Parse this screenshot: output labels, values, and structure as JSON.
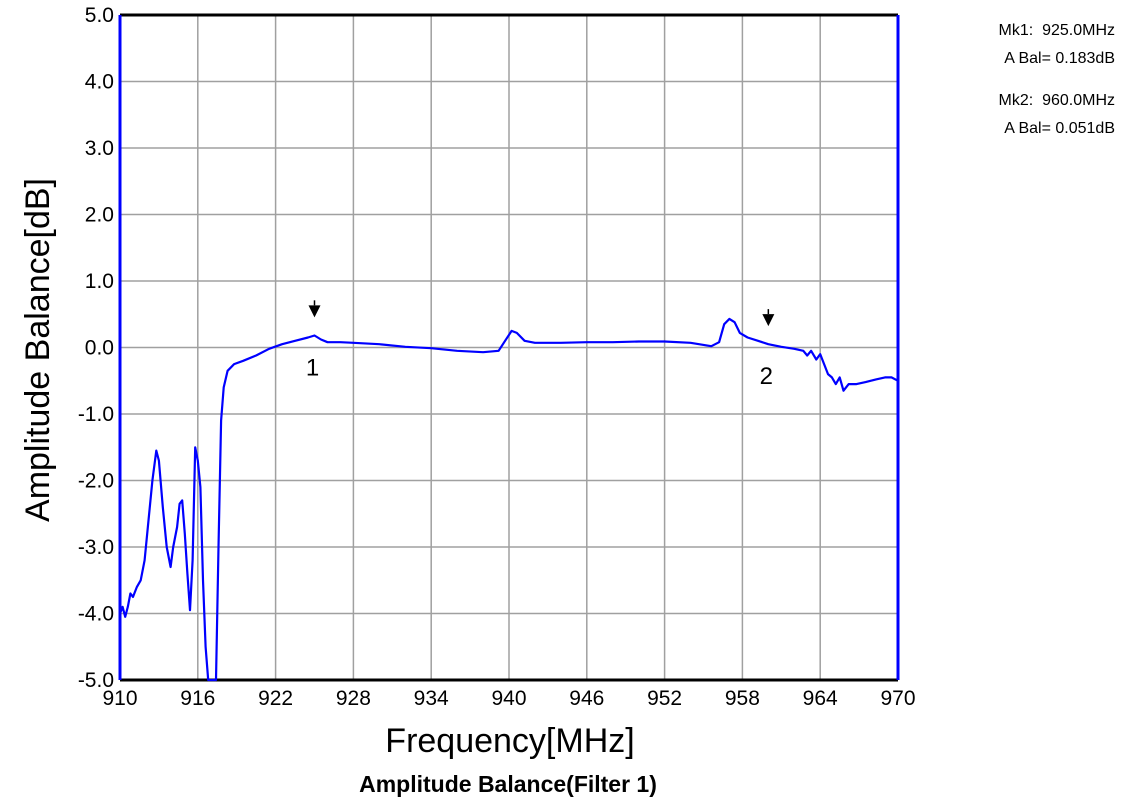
{
  "chart_data": {
    "type": "line",
    "title": "Amplitude Balance(Filter 1)",
    "xlabel": "Frequency[MHz]",
    "ylabel": "Amplitude Balance[dB]",
    "xlim": [
      910,
      970
    ],
    "ylim": [
      -5.0,
      5.0
    ],
    "x_ticks": [
      "910",
      "916",
      "922",
      "928",
      "934",
      "940",
      "946",
      "952",
      "958",
      "964",
      "970"
    ],
    "y_ticks": [
      "5.0",
      "4.0",
      "3.0",
      "2.0",
      "1.0",
      "0.0",
      "-1.0",
      "-2.0",
      "-3.0",
      "-4.0",
      "-5.0"
    ],
    "grid": true,
    "line_color": "#0000ff",
    "series": [
      {
        "points": [
          [
            910.0,
            -4.0
          ],
          [
            910.2,
            -3.9
          ],
          [
            910.4,
            -4.05
          ],
          [
            910.6,
            -3.9
          ],
          [
            910.8,
            -3.7
          ],
          [
            911.0,
            -3.75
          ],
          [
            911.3,
            -3.6
          ],
          [
            911.6,
            -3.5
          ],
          [
            911.9,
            -3.2
          ],
          [
            912.2,
            -2.6
          ],
          [
            912.5,
            -2.0
          ],
          [
            912.8,
            -1.55
          ],
          [
            913.0,
            -1.7
          ],
          [
            913.3,
            -2.4
          ],
          [
            913.6,
            -3.0
          ],
          [
            913.9,
            -3.3
          ],
          [
            914.1,
            -3.0
          ],
          [
            914.4,
            -2.7
          ],
          [
            914.6,
            -2.35
          ],
          [
            914.8,
            -2.3
          ],
          [
            915.0,
            -2.8
          ],
          [
            915.2,
            -3.4
          ],
          [
            915.4,
            -3.95
          ],
          [
            915.6,
            -3.2
          ],
          [
            915.8,
            -1.5
          ],
          [
            916.0,
            -1.7
          ],
          [
            916.2,
            -2.1
          ],
          [
            916.4,
            -3.5
          ],
          [
            916.6,
            -4.5
          ],
          [
            916.8,
            -5.0
          ],
          [
            917.4,
            -5.0
          ],
          [
            917.6,
            -3.0
          ],
          [
            917.8,
            -1.1
          ],
          [
            918.0,
            -0.6
          ],
          [
            918.3,
            -0.35
          ],
          [
            918.8,
            -0.25
          ],
          [
            919.5,
            -0.2
          ],
          [
            920.5,
            -0.12
          ],
          [
            921.5,
            -0.02
          ],
          [
            922.5,
            0.05
          ],
          [
            923.5,
            0.1
          ],
          [
            924.5,
            0.15
          ],
          [
            925.0,
            0.18
          ],
          [
            925.5,
            0.12
          ],
          [
            926.0,
            0.08
          ],
          [
            927.0,
            0.08
          ],
          [
            928.0,
            0.07
          ],
          [
            930.0,
            0.05
          ],
          [
            932.0,
            0.01
          ],
          [
            934.0,
            -0.01
          ],
          [
            936.0,
            -0.05
          ],
          [
            938.0,
            -0.07
          ],
          [
            939.2,
            -0.05
          ],
          [
            939.7,
            0.1
          ],
          [
            940.2,
            0.25
          ],
          [
            940.6,
            0.22
          ],
          [
            941.2,
            0.1
          ],
          [
            942.0,
            0.07
          ],
          [
            944.0,
            0.07
          ],
          [
            946.0,
            0.08
          ],
          [
            948.0,
            0.08
          ],
          [
            950.0,
            0.09
          ],
          [
            952.0,
            0.09
          ],
          [
            954.0,
            0.07
          ],
          [
            955.6,
            0.02
          ],
          [
            956.2,
            0.08
          ],
          [
            956.6,
            0.35
          ],
          [
            957.0,
            0.43
          ],
          [
            957.4,
            0.38
          ],
          [
            957.8,
            0.22
          ],
          [
            958.4,
            0.15
          ],
          [
            959.2,
            0.1
          ],
          [
            960.0,
            0.05
          ],
          [
            961.0,
            0.01
          ],
          [
            962.0,
            -0.02
          ],
          [
            962.7,
            -0.05
          ],
          [
            963.0,
            -0.12
          ],
          [
            963.3,
            -0.05
          ],
          [
            963.7,
            -0.18
          ],
          [
            964.0,
            -0.1
          ],
          [
            964.3,
            -0.25
          ],
          [
            964.6,
            -0.4
          ],
          [
            964.9,
            -0.45
          ],
          [
            965.2,
            -0.55
          ],
          [
            965.5,
            -0.45
          ],
          [
            965.8,
            -0.65
          ],
          [
            966.2,
            -0.55
          ],
          [
            966.8,
            -0.55
          ],
          [
            967.5,
            -0.52
          ],
          [
            968.3,
            -0.48
          ],
          [
            969.0,
            -0.45
          ],
          [
            969.5,
            -0.45
          ],
          [
            970.0,
            -0.5
          ]
        ]
      }
    ],
    "markers": [
      {
        "label": "1",
        "x": 925.0,
        "y": 0.183
      },
      {
        "label": "2",
        "x": 960.0,
        "y": 0.051
      }
    ],
    "marker_readouts": [
      {
        "line1": "Mk1:  925.0MHz",
        "line2": "A Bal= 0.183dB"
      },
      {
        "line1": "Mk2:  960.0MHz",
        "line2": "A Bal= 0.051dB"
      }
    ]
  }
}
